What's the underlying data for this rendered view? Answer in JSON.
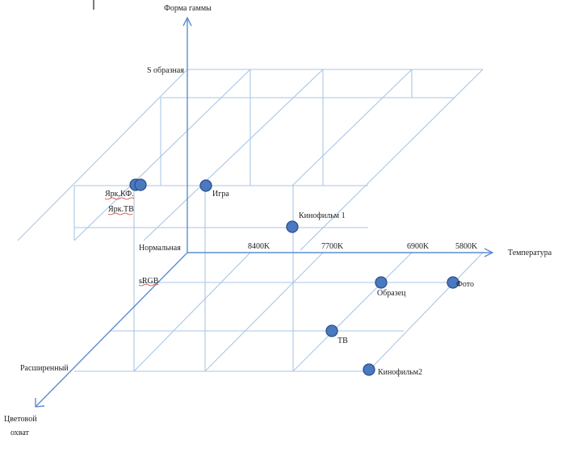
{
  "axes": {
    "vertical": "Форма гаммы",
    "horizontal": "Температура",
    "depth_line1": "Цветовой",
    "depth_line2": "охват"
  },
  "gamma_levels": {
    "s_shaped": "S образная",
    "normal": "Нормальная"
  },
  "gamut_levels": {
    "srgb": "sRGB",
    "extended": "Расширенный"
  },
  "temperatures": [
    "8400K",
    "7700K",
    "6900K",
    "5800K"
  ],
  "points": {
    "bright_kf": "Ярк.КФ.",
    "bright_tv": "Ярк.ТВ",
    "game": "Игра",
    "movie1": "Кинофильм 1",
    "sample": "Образец",
    "photo": "Фото",
    "tv": "ТВ",
    "movie2": "Кинофильм2"
  },
  "colors": {
    "axis": "#5b8ed0",
    "grid": "#a9c6e4",
    "point_fill": "#4a79c0",
    "point_stroke": "#2b4f8c"
  }
}
